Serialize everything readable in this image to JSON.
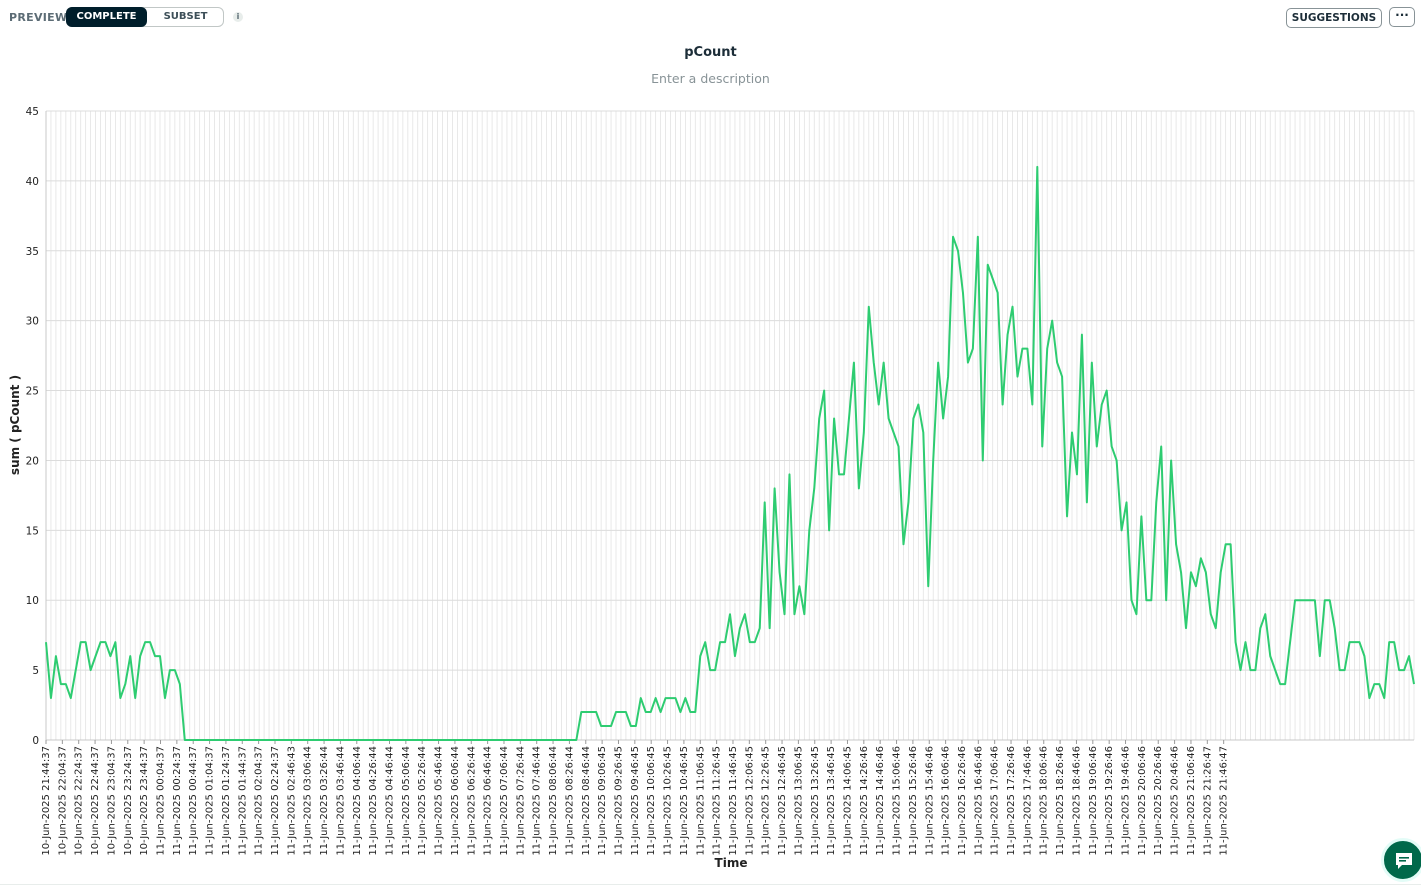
{
  "toolbar": {
    "preview_label": "PREVIEW",
    "mode_options": [
      "COMPLETE",
      "SUBSET"
    ],
    "selected_mode": "COMPLETE",
    "info_icon": "info-icon",
    "suggestions_label": "SUGGESTIONS",
    "more_label": "···"
  },
  "chart_header": {
    "title": "pCount",
    "description_placeholder": "Enter a description"
  },
  "chat_button": {
    "icon": "chat-bubble-icon"
  },
  "colors": {
    "line": "#2ecc71",
    "grid": "#e3e3e3",
    "axis": "#6b6b6b"
  },
  "chart_data": {
    "type": "line",
    "title": "pCount",
    "xlabel": "Time",
    "ylabel": "sum ( pCount )",
    "ylim": [
      0,
      45
    ],
    "yticks": [
      0,
      5,
      10,
      15,
      20,
      25,
      30,
      35,
      40,
      45
    ],
    "grid": true,
    "x_tick_labels": [
      "10-Jun-2025 21:44:37",
      "10-Jun-2025 22:04:37",
      "10-Jun-2025 22:24:37",
      "10-Jun-2025 22:44:37",
      "10-Jun-2025 23:04:37",
      "10-Jun-2025 23:24:37",
      "10-Jun-2025 23:44:37",
      "11-Jun-2025 00:04:37",
      "11-Jun-2025 00:24:37",
      "11-Jun-2025 00:44:37",
      "11-Jun-2025 01:04:37",
      "11-Jun-2025 01:24:37",
      "11-Jun-2025 01:44:37",
      "11-Jun-2025 02:04:37",
      "11-Jun-2025 02:24:37",
      "11-Jun-2025 02:46:43",
      "11-Jun-2025 03:06:44",
      "11-Jun-2025 03:26:44",
      "11-Jun-2025 03:46:44",
      "11-Jun-2025 04:06:44",
      "11-Jun-2025 04:26:44",
      "11-Jun-2025 04:46:44",
      "11-Jun-2025 05:06:44",
      "11-Jun-2025 05:26:44",
      "11-Jun-2025 05:46:44",
      "11-Jun-2025 06:06:44",
      "11-Jun-2025 06:26:44",
      "11-Jun-2025 06:46:44",
      "11-Jun-2025 07:06:44",
      "11-Jun-2025 07:26:44",
      "11-Jun-2025 07:46:44",
      "11-Jun-2025 08:06:44",
      "11-Jun-2025 08:26:44",
      "11-Jun-2025 08:46:44",
      "11-Jun-2025 09:06:45",
      "11-Jun-2025 09:26:45",
      "11-Jun-2025 09:46:45",
      "11-Jun-2025 10:06:45",
      "11-Jun-2025 10:26:45",
      "11-Jun-2025 10:46:45",
      "11-Jun-2025 11:06:45",
      "11-Jun-2025 11:26:45",
      "11-Jun-2025 11:46:45",
      "11-Jun-2025 12:06:45",
      "11-Jun-2025 12:26:45",
      "11-Jun-2025 12:46:45",
      "11-Jun-2025 13:06:45",
      "11-Jun-2025 13:26:45",
      "11-Jun-2025 13:46:45",
      "11-Jun-2025 14:06:45",
      "11-Jun-2025 14:26:46",
      "11-Jun-2025 14:46:46",
      "11-Jun-2025 15:06:46",
      "11-Jun-2025 15:26:46",
      "11-Jun-2025 15:46:46",
      "11-Jun-2025 16:06:46",
      "11-Jun-2025 16:26:46",
      "11-Jun-2025 16:46:46",
      "11-Jun-2025 17:06:46",
      "11-Jun-2025 17:26:46",
      "11-Jun-2025 17:46:46",
      "11-Jun-2025 18:06:46",
      "11-Jun-2025 18:26:46",
      "11-Jun-2025 18:46:46",
      "11-Jun-2025 19:06:46",
      "11-Jun-2025 19:26:46",
      "11-Jun-2025 19:46:46",
      "11-Jun-2025 20:06:46",
      "11-Jun-2025 20:26:46",
      "11-Jun-2025 20:46:46",
      "11-Jun-2025 21:06:46",
      "11-Jun-2025 21:26:47",
      "11-Jun-2025 21:46:47"
    ],
    "points_per_tick": 3.3,
    "series": [
      {
        "values": [
          7,
          3,
          6,
          4,
          4,
          3,
          5,
          7,
          7,
          5,
          6,
          7,
          7,
          6,
          7,
          3,
          4,
          6,
          3,
          6,
          7,
          7,
          6,
          6,
          3,
          5,
          5,
          4,
          0,
          0,
          0,
          0,
          0,
          0,
          0,
          0,
          0,
          0,
          0,
          0,
          0,
          0,
          0,
          0,
          0,
          0,
          0,
          0,
          0,
          0,
          0,
          0,
          0,
          0,
          0,
          0,
          0,
          0,
          0,
          0,
          0,
          0,
          0,
          0,
          0,
          0,
          0,
          0,
          0,
          0,
          0,
          0,
          0,
          0,
          0,
          0,
          0,
          0,
          0,
          0,
          0,
          0,
          0,
          0,
          0,
          0,
          0,
          0,
          0,
          0,
          0,
          0,
          0,
          0,
          0,
          0,
          0,
          0,
          0,
          0,
          0,
          0,
          0,
          0,
          0,
          0,
          0,
          0,
          2,
          2,
          2,
          2,
          1,
          1,
          1,
          2,
          2,
          2,
          1,
          1,
          3,
          2,
          2,
          3,
          2,
          3,
          3,
          3,
          2,
          3,
          2,
          2,
          6,
          7,
          5,
          5,
          7,
          7,
          9,
          6,
          8,
          9,
          7,
          7,
          8,
          17,
          8,
          18,
          12,
          9,
          19,
          9,
          11,
          9,
          15,
          18,
          23,
          25,
          15,
          23,
          19,
          19,
          23,
          27,
          18,
          22,
          31,
          27,
          24,
          27,
          23,
          22,
          21,
          14,
          17,
          23,
          24,
          22,
          11,
          20,
          27,
          23,
          26,
          36,
          35,
          32,
          27,
          28,
          36,
          20,
          34,
          33,
          32,
          24,
          29,
          31,
          26,
          28,
          28,
          24,
          41,
          21,
          28,
          30,
          27,
          26,
          16,
          22,
          19,
          29,
          17,
          27,
          21,
          24,
          25,
          21,
          20,
          15,
          17,
          10,
          9,
          16,
          10,
          10,
          17,
          21,
          10,
          20,
          14,
          12,
          8,
          12,
          11,
          13,
          12,
          9,
          8,
          12,
          14,
          14,
          7,
          5,
          7,
          5,
          5,
          8,
          9,
          6,
          5,
          4,
          4,
          7,
          10,
          10,
          10,
          10,
          10,
          6,
          10,
          10,
          8,
          5,
          5,
          7,
          7,
          7,
          6,
          3,
          4,
          4,
          3,
          7,
          7,
          5,
          5,
          6,
          4
        ]
      }
    ]
  }
}
